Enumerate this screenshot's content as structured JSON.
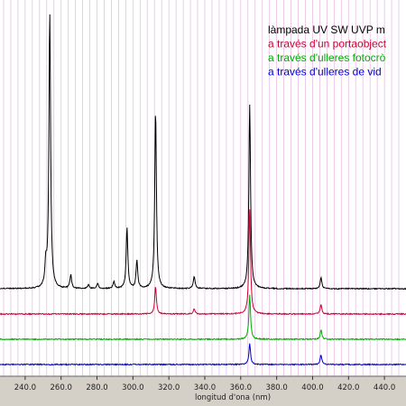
{
  "chart_data": {
    "type": "line",
    "title": "",
    "xlabel": "longitud d'ona (nm)",
    "ylabel": "",
    "xlim": [
      226,
      452
    ],
    "x_ticks": [
      "240.0",
      "260.0",
      "280.0",
      "300.0",
      "320.0",
      "340.0",
      "360.0",
      "380.0",
      "400.0",
      "420.0",
      "440.0"
    ],
    "grid": true,
    "legend_placement": "top-right",
    "series": [
      {
        "name": "làmpada UV SW UVP  m",
        "color": "#000000",
        "baseline": 0,
        "peaks": [
          [
            251.5,
            0.08
          ],
          [
            253.7,
            1.0
          ],
          [
            265.4,
            0.05
          ],
          [
            275.3,
            0.015
          ],
          [
            280.4,
            0.02
          ],
          [
            289.4,
            0.025
          ],
          [
            296.7,
            0.22
          ],
          [
            302.2,
            0.1
          ],
          [
            312.6,
            0.65
          ],
          [
            334.1,
            0.045
          ],
          [
            365.0,
            0.67
          ],
          [
            404.7,
            0.04
          ]
        ]
      },
      {
        "name": "a través d'un portaobject",
        "color": "#cc0033",
        "baseline": -1,
        "peaks": [
          [
            312.6,
            0.1
          ],
          [
            334.1,
            0.018
          ],
          [
            365.0,
            0.38
          ],
          [
            404.7,
            0.035
          ]
        ]
      },
      {
        "name": "a través d'ulleres fotocrò",
        "color": "#00aa00",
        "baseline": -2,
        "peaks": [
          [
            365.0,
            0.16
          ],
          [
            404.7,
            0.035
          ]
        ]
      },
      {
        "name": "a través d'ulleres de  vid",
        "color": "#0000cc",
        "baseline": -3,
        "peaks": [
          [
            365.0,
            0.075
          ],
          [
            404.7,
            0.035
          ]
        ]
      }
    ]
  }
}
